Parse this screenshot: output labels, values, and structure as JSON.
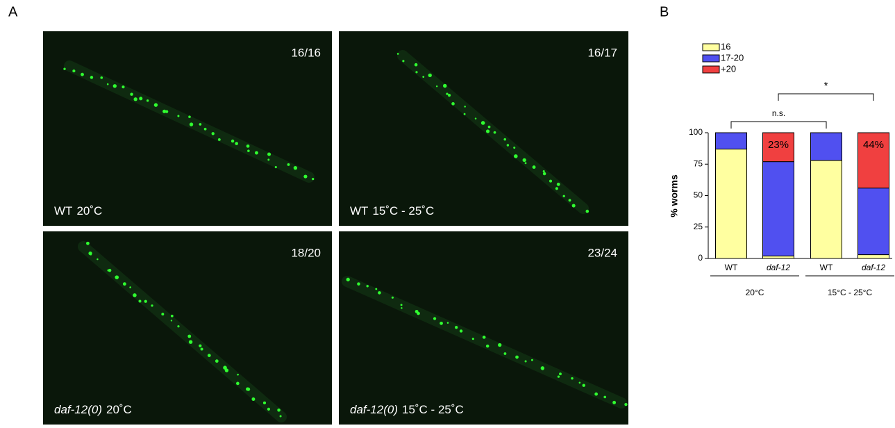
{
  "panels": {
    "a": "A",
    "b": "B"
  },
  "images": [
    {
      "count": "16/16",
      "genotype": "WT",
      "italic": false,
      "condition": "20˚C"
    },
    {
      "count": "16/17",
      "genotype": "WT",
      "italic": false,
      "condition": "15˚C - 25˚C"
    },
    {
      "count": "18/20",
      "genotype": "daf-12(0)",
      "italic": true,
      "condition": "20˚C"
    },
    {
      "count": "23/24",
      "genotype": "daf-12(0)",
      "italic": true,
      "condition": "15˚C - 25˚C"
    }
  ],
  "chart_data": {
    "type": "stacked-bar",
    "ylabel": "% worms",
    "categories": [
      "WT",
      "daf-12",
      "WT",
      "daf-12"
    ],
    "italic_categories": [
      false,
      true,
      false,
      true
    ],
    "groups": [
      "20°C",
      "15°C - 25°C"
    ],
    "series": [
      {
        "name": "16",
        "color": "#ffffa0",
        "values": [
          87,
          2,
          78,
          3
        ]
      },
      {
        "name": "17-20",
        "color": "#5050f0",
        "values": [
          13,
          75,
          22,
          53
        ]
      },
      {
        "name": "+20",
        "color": "#f04040",
        "values": [
          0,
          23,
          0,
          44
        ],
        "value_labels": [
          null,
          "23%",
          null,
          "44%"
        ]
      }
    ],
    "ylim": [
      0,
      100
    ],
    "yticks": [
      0,
      25,
      50,
      75,
      100
    ],
    "annotations": [
      "n.s.",
      "*"
    ]
  }
}
